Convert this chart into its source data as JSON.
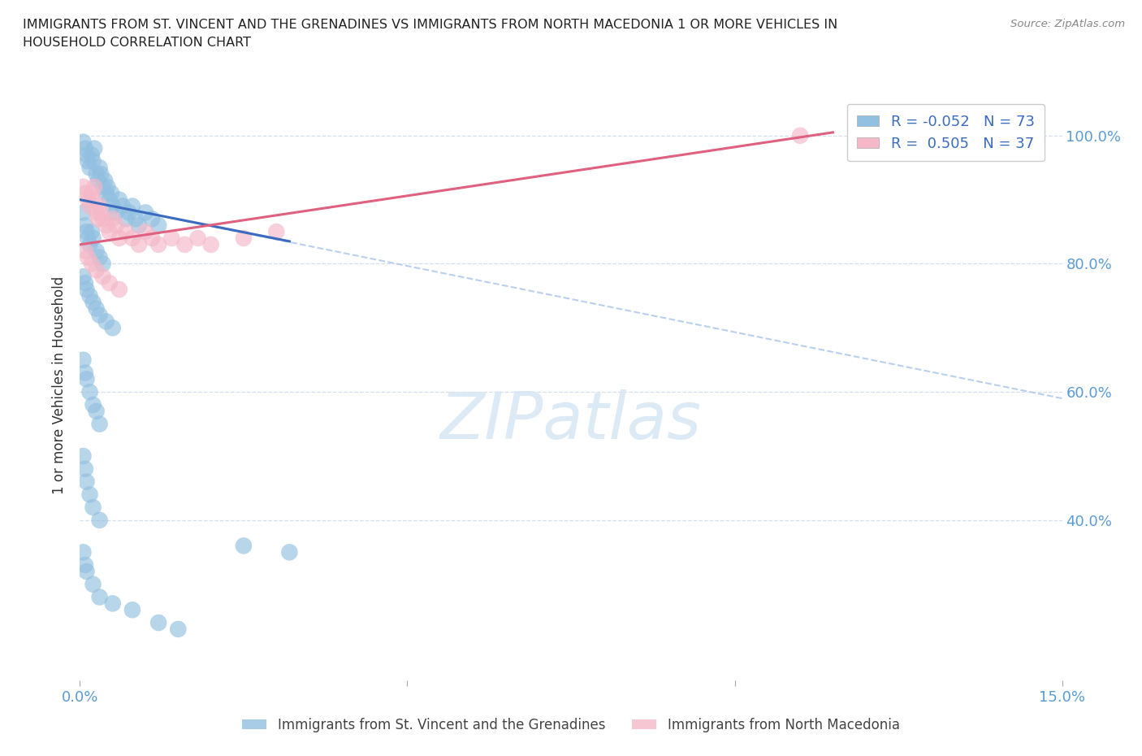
{
  "title": "IMMIGRANTS FROM ST. VINCENT AND THE GRENADINES VS IMMIGRANTS FROM NORTH MACEDONIA 1 OR MORE VEHICLES IN\nHOUSEHOLD CORRELATION CHART",
  "source": "Source: ZipAtlas.com",
  "ylabel": "1 or more Vehicles in Household",
  "xlim": [
    0.0,
    15.0
  ],
  "ylim": [
    15.0,
    107.0
  ],
  "color_vincent": "#92c0e0",
  "color_macedonia": "#f4b8c8",
  "trend_color_vincent": "#3a6bbf",
  "trend_color_macedonia": "#e06080",
  "trend_dash_color": "#b8d0ee",
  "bg_color": "#ffffff",
  "legend_label1": "R = -0.052   N = 73",
  "legend_label2": "R =  0.505   N = 37",
  "legend_color": "#3a6bbf",
  "bottom_label1": "Immigrants from St. Vincent and the Grenadines",
  "bottom_label2": "Immigrants from North Macedonia",
  "sv_x": [
    0.05,
    0.08,
    0.1,
    0.12,
    0.15,
    0.18,
    0.2,
    0.22,
    0.25,
    0.28,
    0.3,
    0.32,
    0.35,
    0.38,
    0.4,
    0.42,
    0.45,
    0.48,
    0.5,
    0.55,
    0.6,
    0.65,
    0.7,
    0.75,
    0.8,
    0.85,
    0.9,
    1.0,
    1.1,
    1.2,
    0.05,
    0.08,
    0.1,
    0.12,
    0.15,
    0.18,
    0.2,
    0.25,
    0.3,
    0.35,
    0.05,
    0.08,
    0.1,
    0.15,
    0.2,
    0.25,
    0.3,
    0.4,
    0.5,
    0.05,
    0.08,
    0.1,
    0.15,
    0.2,
    0.25,
    0.3,
    0.05,
    0.08,
    0.1,
    0.15,
    0.2,
    0.3,
    0.05,
    0.08,
    0.1,
    0.2,
    0.3,
    0.5,
    0.8,
    1.2,
    1.5,
    2.5,
    3.2
  ],
  "sv_y": [
    99,
    98,
    97,
    96,
    95,
    97,
    96,
    98,
    94,
    93,
    95,
    94,
    92,
    93,
    91,
    92,
    90,
    91,
    89,
    88,
    90,
    89,
    87,
    88,
    89,
    87,
    86,
    88,
    87,
    86,
    88,
    86,
    85,
    84,
    83,
    85,
    84,
    82,
    81,
    80,
    78,
    77,
    76,
    75,
    74,
    73,
    72,
    71,
    70,
    65,
    63,
    62,
    60,
    58,
    57,
    55,
    50,
    48,
    46,
    44,
    42,
    40,
    35,
    33,
    32,
    30,
    28,
    27,
    26,
    24,
    23,
    36,
    35
  ],
  "nm_x": [
    0.05,
    0.08,
    0.12,
    0.15,
    0.18,
    0.2,
    0.22,
    0.25,
    0.28,
    0.3,
    0.32,
    0.35,
    0.4,
    0.45,
    0.5,
    0.55,
    0.6,
    0.7,
    0.8,
    0.9,
    1.0,
    1.1,
    1.2,
    1.4,
    1.6,
    1.8,
    2.0,
    2.5,
    3.0,
    0.08,
    0.12,
    0.18,
    0.25,
    0.35,
    0.45,
    0.6,
    11.0
  ],
  "nm_y": [
    92,
    91,
    90,
    89,
    91,
    90,
    92,
    88,
    87,
    89,
    88,
    87,
    86,
    85,
    87,
    86,
    84,
    85,
    84,
    83,
    85,
    84,
    83,
    84,
    83,
    84,
    83,
    84,
    85,
    82,
    81,
    80,
    79,
    78,
    77,
    76,
    100
  ],
  "sv_trend_x0": 0.0,
  "sv_trend_x1": 3.2,
  "sv_trend_y0": 90.0,
  "sv_trend_y1": 83.5,
  "sv_dash_x0": 0.0,
  "sv_dash_x1": 15.0,
  "sv_dash_y0": 90.0,
  "sv_dash_y1": 59.0,
  "nm_trend_x0": 0.0,
  "nm_trend_x1": 11.5,
  "nm_trend_y0": 83.0,
  "nm_trend_y1": 100.5
}
